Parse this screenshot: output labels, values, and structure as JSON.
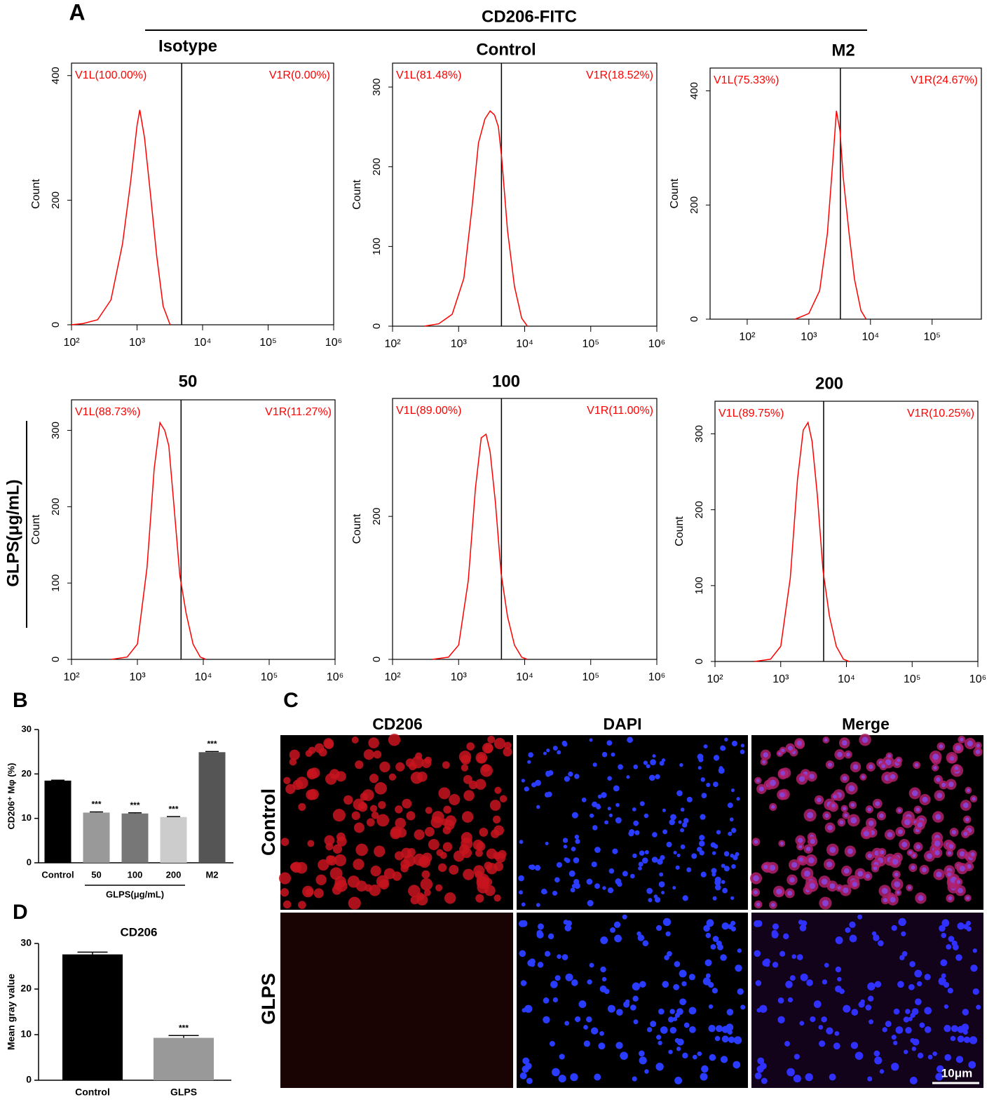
{
  "figure": {
    "panel_labels": [
      "A",
      "B",
      "C",
      "D"
    ],
    "flow_header": "CD206-FITC",
    "flow_row_label": "GLPS(μg/mL)",
    "microscopy": {
      "columns": [
        "CD206",
        "DAPI",
        "Merge"
      ],
      "rows": [
        "Control",
        "GLPS"
      ],
      "scale_bar": "10μm"
    }
  },
  "chart_data": [
    {
      "type": "line",
      "title": "Isotype",
      "ylabel": "Count",
      "color": "#ff0000",
      "xscale": "log",
      "x": [
        100,
        150,
        250,
        400,
        600,
        800,
        1000,
        1100,
        1300,
        1600,
        2000,
        2500,
        3200
      ],
      "values": [
        0,
        2,
        8,
        40,
        130,
        230,
        320,
        345,
        300,
        210,
        110,
        30,
        0
      ],
      "xlim": [
        100,
        1000000
      ],
      "xticks": [
        {
          "value": 100,
          "label": "10²"
        },
        {
          "value": 1000,
          "label": "10³"
        },
        {
          "value": 10000,
          "label": "10⁴"
        },
        {
          "value": 100000,
          "label": "10⁵"
        },
        {
          "value": 1000000,
          "label": "10⁶"
        }
      ],
      "ylim": [
        0,
        420
      ],
      "yticks": [
        0,
        200,
        400
      ],
      "gate": 4800,
      "annotations": [
        "V1L(100.00%)",
        "V1R(0.00%)"
      ]
    },
    {
      "type": "line",
      "title": "Control",
      "ylabel": "Count",
      "color": "#ff0000",
      "xscale": "log",
      "x": [
        300,
        500,
        800,
        1200,
        1600,
        2000,
        2500,
        3000,
        3500,
        4000,
        4500,
        5500,
        7000,
        9000,
        11000
      ],
      "values": [
        0,
        3,
        15,
        60,
        150,
        230,
        260,
        270,
        265,
        250,
        210,
        120,
        50,
        10,
        0
      ],
      "xlim": [
        100,
        1000000
      ],
      "xticks": [
        {
          "value": 100,
          "label": "10²"
        },
        {
          "value": 1000,
          "label": "10³"
        },
        {
          "value": 10000,
          "label": "10⁴"
        },
        {
          "value": 100000,
          "label": "10⁵"
        },
        {
          "value": 1000000,
          "label": "10⁶"
        }
      ],
      "ylim": [
        0,
        330
      ],
      "yticks": [
        0,
        100,
        200,
        300
      ],
      "gate": 4450,
      "annotations": [
        "V1L(81.48%)",
        "V1R(18.52%)"
      ]
    },
    {
      "type": "line",
      "title": "M2",
      "ylabel": "Count",
      "color": "#ff0000",
      "xscale": "log",
      "x": [
        600,
        1000,
        1500,
        2000,
        2500,
        2800,
        3200,
        3600,
        4500,
        5500,
        7000,
        8500
      ],
      "values": [
        0,
        10,
        50,
        150,
        290,
        365,
        330,
        250,
        150,
        70,
        15,
        0
      ],
      "xlim": [
        25,
        630000
      ],
      "xticks": [
        {
          "value": 100,
          "label": "10²"
        },
        {
          "value": 1000,
          "label": "10³"
        },
        {
          "value": 10000,
          "label": "10⁴"
        },
        {
          "value": 100000,
          "label": "10⁵"
        }
      ],
      "ylim": [
        0,
        440
      ],
      "yticks": [
        0,
        200,
        400
      ],
      "gate": 3250,
      "annotations": [
        "V1L(75.33%)",
        "V1R(24.67%)"
      ]
    },
    {
      "type": "line",
      "title": "50",
      "ylabel": "Count",
      "color": "#ff0000",
      "xscale": "log",
      "x": [
        400,
        700,
        1000,
        1400,
        1800,
        2200,
        2600,
        3000,
        3600,
        4400,
        5500,
        7000,
        9000,
        11000
      ],
      "values": [
        0,
        3,
        20,
        120,
        250,
        310,
        300,
        280,
        200,
        110,
        60,
        20,
        3,
        0
      ],
      "xlim": [
        100,
        1000000
      ],
      "xticks": [
        {
          "value": 100,
          "label": "10²"
        },
        {
          "value": 1000,
          "label": "10³"
        },
        {
          "value": 10000,
          "label": "10⁴"
        },
        {
          "value": 100000,
          "label": "10⁵"
        },
        {
          "value": 1000000,
          "label": "10⁶"
        }
      ],
      "ylim": [
        0,
        340
      ],
      "yticks": [
        0,
        100,
        200,
        300
      ],
      "gate": 4600,
      "annotations": [
        "V1L(88.73%)",
        "V1R(11.27%)"
      ]
    },
    {
      "type": "line",
      "title": "100",
      "ylabel": "Count",
      "color": "#ff0000",
      "xscale": "log",
      "x": [
        400,
        700,
        1000,
        1400,
        1800,
        2200,
        2600,
        3000,
        3600,
        4400,
        5500,
        7000,
        9000,
        11000
      ],
      "values": [
        0,
        3,
        20,
        110,
        240,
        310,
        315,
        290,
        220,
        120,
        60,
        20,
        3,
        0
      ],
      "xlim": [
        100,
        1000000
      ],
      "xticks": [
        {
          "value": 100,
          "label": "10²"
        },
        {
          "value": 1000,
          "label": "10³"
        },
        {
          "value": 10000,
          "label": "10⁴"
        },
        {
          "value": 100000,
          "label": "10⁵"
        },
        {
          "value": 1000000,
          "label": "10⁶"
        }
      ],
      "ylim": [
        0,
        365
      ],
      "yticks": [
        0,
        200
      ],
      "gate": 4450,
      "annotations": [
        "V1L(89.00%)",
        "V1R(11.00%)"
      ]
    },
    {
      "type": "line",
      "title": "200",
      "ylabel": "Count",
      "color": "#ff0000",
      "xscale": "log",
      "x": [
        400,
        700,
        1000,
        1400,
        1800,
        2200,
        2600,
        3000,
        3600,
        4400,
        5500,
        7000,
        9000,
        11000
      ],
      "values": [
        0,
        3,
        20,
        110,
        240,
        305,
        315,
        290,
        220,
        120,
        60,
        20,
        3,
        0
      ],
      "xlim": [
        100,
        1000000
      ],
      "xticks": [
        {
          "value": 100,
          "label": "10²"
        },
        {
          "value": 1000,
          "label": "10³"
        },
        {
          "value": 10000,
          "label": "10⁴"
        },
        {
          "value": 100000,
          "label": "10⁵"
        },
        {
          "value": 1000000,
          "label": "10⁶"
        }
      ],
      "ylim": [
        0,
        343
      ],
      "yticks": [
        0,
        100,
        200,
        300
      ],
      "gate": 4500,
      "annotations": [
        "V1L(89.75%)",
        "V1R(10.25%)"
      ]
    },
    {
      "type": "bar",
      "ylabel": "CD206⁺ Mφ (%)",
      "categories": [
        "Control",
        "50",
        "100",
        "200",
        "M2"
      ],
      "values": [
        18.5,
        11.3,
        11.1,
        10.3,
        24.9
      ],
      "errors": [
        0.1,
        0.15,
        0.15,
        0.1,
        0.15
      ],
      "colors": [
        "#000000",
        "#999999",
        "#777777",
        "#cccccc",
        "#555555"
      ],
      "significance": [
        null,
        "***",
        "***",
        "***",
        "***"
      ],
      "group_label": "GLPS(μg/mL)",
      "ylim": [
        0,
        30
      ],
      "yticks": [
        0,
        10,
        20,
        30
      ]
    },
    {
      "type": "bar",
      "title": "CD206",
      "ylabel": "Mean gray value",
      "categories": [
        "Control",
        "GLPS"
      ],
      "values": [
        27.6,
        9.3
      ],
      "errors": [
        0.5,
        0.5
      ],
      "colors": [
        "#000000",
        "#999999"
      ],
      "significance": [
        null,
        "***"
      ],
      "ylim": [
        0,
        30
      ],
      "yticks": [
        0,
        10,
        20,
        30
      ]
    }
  ]
}
